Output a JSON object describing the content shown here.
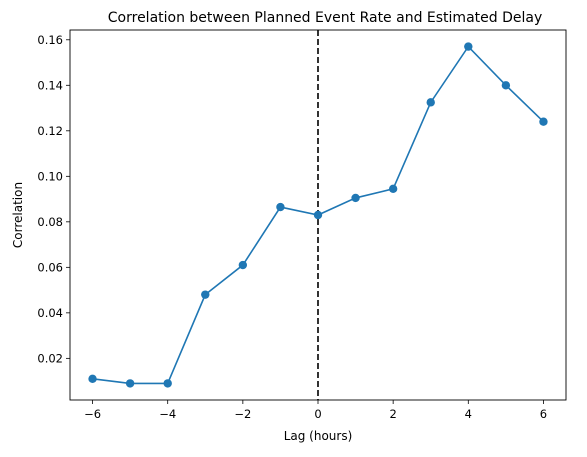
{
  "chart_data": {
    "type": "line",
    "title": "Correlation between Planned Event Rate and Estimated Delay",
    "xlabel": "Lag (hours)",
    "ylabel": "Correlation",
    "xlim": [
      -6.6,
      6.6
    ],
    "ylim": [
      0.0017,
      0.1643
    ],
    "x_ticks": [
      -6,
      -4,
      -2,
      0,
      2,
      4,
      6
    ],
    "x_tick_labels": [
      "−6",
      "−4",
      "−2",
      "0",
      "2",
      "4",
      "6"
    ],
    "y_ticks": [
      0.02,
      0.04,
      0.06,
      0.08,
      0.1,
      0.12,
      0.14,
      0.16
    ],
    "y_tick_labels": [
      "0.02",
      "0.04",
      "0.06",
      "0.08",
      "0.10",
      "0.12",
      "0.14",
      "0.16"
    ],
    "series": [
      {
        "x": [
          -6,
          -5,
          -4,
          -3,
          -2,
          -1,
          0,
          1,
          2,
          3,
          4,
          5,
          6
        ],
        "y": [
          0.011,
          0.009,
          0.009,
          0.048,
          0.061,
          0.0865,
          0.083,
          0.0905,
          0.0945,
          0.1325,
          0.157,
          0.14,
          0.124
        ],
        "color": "#1f77b4",
        "marker": "circle"
      }
    ],
    "annotations": [
      {
        "type": "vline",
        "x": 0,
        "style": "dashed",
        "color": "#000000"
      }
    ],
    "grid": false,
    "legend": false
  }
}
